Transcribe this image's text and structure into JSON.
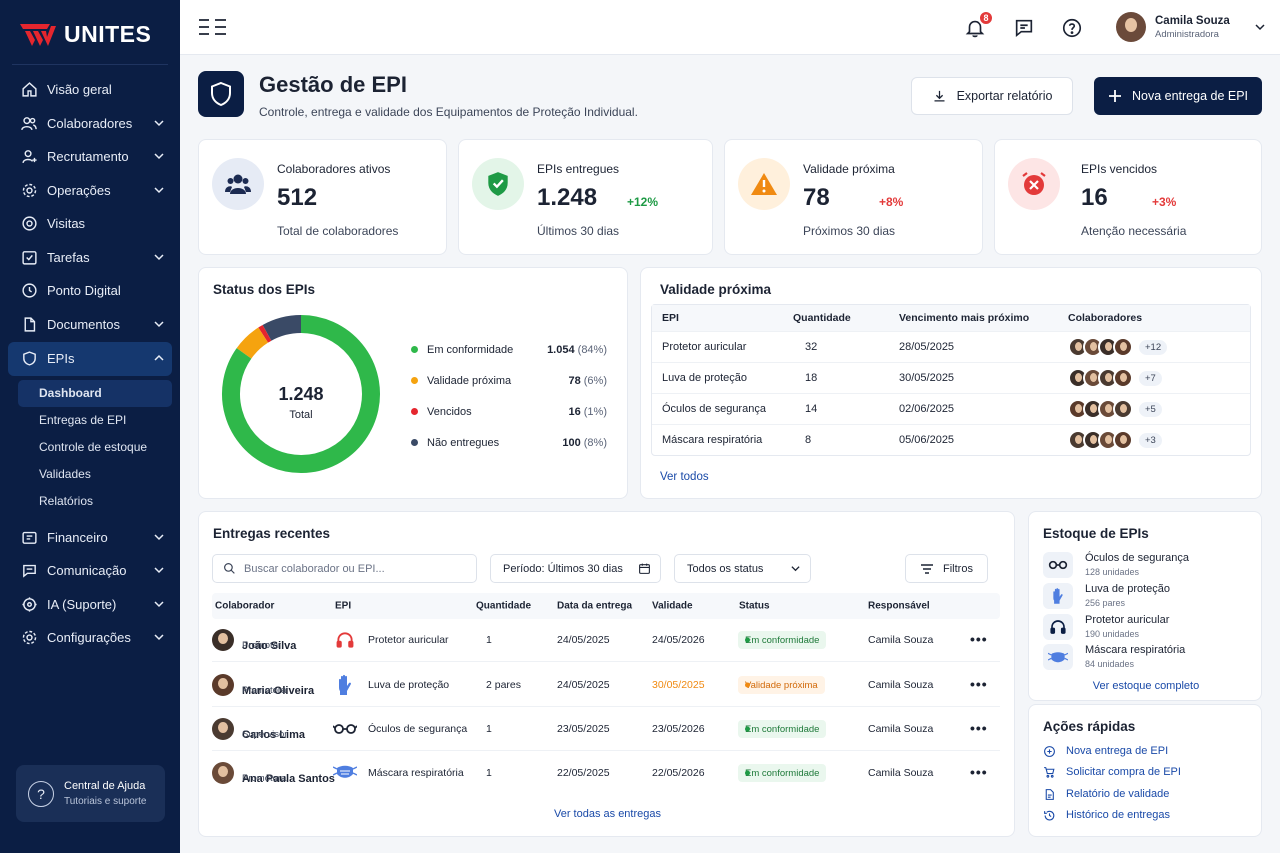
{
  "app": {
    "logo_text": "UNITES"
  },
  "sidebar": {
    "items": [
      {
        "label": "Visão geral",
        "icon": "home-icon",
        "has_children": false
      },
      {
        "label": "Colaboradores",
        "icon": "users-icon",
        "has_children": true
      },
      {
        "label": "Recrutamento",
        "icon": "user-plus-icon",
        "has_children": true
      },
      {
        "label": "Operações",
        "icon": "gear-icon",
        "has_children": true
      },
      {
        "label": "Visitas",
        "icon": "target-icon",
        "has_children": false
      },
      {
        "label": "Tarefas",
        "icon": "checkbox-icon",
        "has_children": true
      },
      {
        "label": "Ponto Digital",
        "icon": "clock-icon",
        "has_children": false
      },
      {
        "label": "Documentos",
        "icon": "document-icon",
        "has_children": true
      },
      {
        "label": "EPIs",
        "icon": "shield-icon",
        "has_children": true,
        "active": true
      }
    ],
    "epis_sub": [
      "Dashboard",
      "Entregas de EPI",
      "Controle de estoque",
      "Validades",
      "Relatórios"
    ],
    "items_after": [
      {
        "label": "Financeiro",
        "icon": "wallet-icon"
      },
      {
        "label": "Comunicação",
        "icon": "chat-icon"
      },
      {
        "label": "IA (Suporte)",
        "icon": "ai-icon"
      },
      {
        "label": "Configurações",
        "icon": "settings-icon"
      }
    ],
    "help": {
      "title": "Central de Ajuda",
      "subtitle": "Tutoriais e suporte"
    }
  },
  "topbar": {
    "notification_count": "8",
    "user": {
      "name": "Camila Souza",
      "role": "Administradora"
    }
  },
  "header": {
    "title": "Gestão de EPI",
    "subtitle": "Controle, entrega e validade dos Equipamentos de Proteção Individual.",
    "export_label": "Exportar relatório",
    "new_label": "Nova entrega de EPI"
  },
  "kpis": [
    {
      "label": "Colaboradores ativos",
      "value": "512",
      "delta": "",
      "foot": "Total de colaboradores",
      "color": "#1c2b52",
      "bg": "#e6ebf5"
    },
    {
      "label": "EPIs entregues",
      "value": "1.248",
      "delta": "+12%",
      "delta_color": "#1e9a45",
      "foot": "Últimos 30 dias",
      "color": "#1e9a45",
      "bg": "#e3f5e8"
    },
    {
      "label": "Validade próxima",
      "value": "78",
      "delta": "+8%",
      "delta_color": "#e33a3a",
      "foot": "Próximos 30 dias",
      "color": "#f08a12",
      "bg": "#fff0dc"
    },
    {
      "label": "EPIs vencidos",
      "value": "16",
      "delta": "+3%",
      "delta_color": "#e33a3a",
      "foot": "Atenção necessária",
      "color": "#e33a3a",
      "bg": "#fde5e5"
    }
  ],
  "status_card": {
    "title": "Status dos EPIs",
    "center_value": "1.248",
    "center_label": "Total",
    "legend": [
      {
        "label": "Em conformidade",
        "value": "1.054",
        "pct": "(84%)",
        "color": "#2fb84a"
      },
      {
        "label": "Validade próxima",
        "value": "78",
        "pct": "(6%)",
        "color": "#f5a30f"
      },
      {
        "label": "Vencidos",
        "value": "16",
        "pct": "(1%)",
        "color": "#e5262e"
      },
      {
        "label": "Não entregues",
        "value": "100",
        "pct": "(8%)",
        "color": "#3a4a66"
      }
    ]
  },
  "chart_data": {
    "type": "pie",
    "categories": [
      "Em conformidade",
      "Validade próxima",
      "Vencidos",
      "Não entregues"
    ],
    "values": [
      84,
      6,
      1,
      8
    ],
    "colors": [
      "#2fb84a",
      "#f5a30f",
      "#e5262e",
      "#3a4a66"
    ]
  },
  "validity": {
    "title": "Validade próxima",
    "columns": [
      "EPI",
      "Quantidade",
      "Vencimento mais próximo",
      "Colaboradores"
    ],
    "rows": [
      {
        "epi": "Protetor auricular",
        "qty": "32",
        "date": "28/05/2025",
        "more": "+12"
      },
      {
        "epi": "Luva de proteção",
        "qty": "18",
        "date": "30/05/2025",
        "more": "+7"
      },
      {
        "epi": "Óculos de segurança",
        "qty": "14",
        "date": "02/06/2025",
        "more": "+5"
      },
      {
        "epi": "Máscara respiratória",
        "qty": "8",
        "date": "05/06/2025",
        "more": "+3"
      }
    ],
    "see_all": "Ver todos"
  },
  "deliveries": {
    "title": "Entregas recentes",
    "search_placeholder": "Buscar colaborador ou EPI...",
    "period": "Período: Últimos 30 dias",
    "status_filter": "Todos os status",
    "filters": "Filtros",
    "columns": [
      "Colaborador",
      "EPI",
      "Quantidade",
      "Data da entrega",
      "Validade",
      "Status",
      "Responsável"
    ],
    "rows": [
      {
        "name": "João Silva",
        "role": "Promotor",
        "epi": "Protetor auricular",
        "epi_icon": "headphones-icon",
        "qty": "1",
        "date": "24/05/2025",
        "validity": "24/05/2026",
        "status": "Em conformidade",
        "status_type": "ok",
        "resp": "Camila Souza"
      },
      {
        "name": "Maria Oliveira",
        "role": "Promotora",
        "epi": "Luva de proteção",
        "epi_icon": "glove-icon",
        "qty": "2 pares",
        "date": "24/05/2025",
        "validity": "30/05/2025",
        "status": "Validade próxima",
        "status_type": "warn",
        "resp": "Camila Souza"
      },
      {
        "name": "Carlos Lima",
        "role": "Supervisor",
        "epi": "Óculos de segurança",
        "epi_icon": "glasses-icon",
        "qty": "1",
        "date": "23/05/2025",
        "validity": "23/05/2026",
        "status": "Em conformidade",
        "status_type": "ok",
        "resp": "Camila Souza"
      },
      {
        "name": "Ana Paula Santos",
        "role": "Promotora",
        "epi": "Máscara respiratória",
        "epi_icon": "mask-icon",
        "qty": "1",
        "date": "22/05/2025",
        "validity": "22/05/2026",
        "status": "Em conformidade",
        "status_type": "ok",
        "resp": "Camila Souza"
      }
    ],
    "see_all": "Ver todas as entregas"
  },
  "stock": {
    "title": "Estoque de EPIs",
    "items": [
      {
        "name": "Óculos de segurança",
        "qty": "128 unidades",
        "icon": "glasses-icon"
      },
      {
        "name": "Luva de proteção",
        "qty": "256 pares",
        "icon": "glove-icon"
      },
      {
        "name": "Protetor auricular",
        "qty": "190 unidades",
        "icon": "headphones-icon"
      },
      {
        "name": "Máscara respiratória",
        "qty": "84 unidades",
        "icon": "mask-icon"
      }
    ],
    "see_all": "Ver estoque completo"
  },
  "quick": {
    "title": "Ações rápidas",
    "items": [
      {
        "label": "Nova entrega de EPI",
        "icon": "plus-circle-icon"
      },
      {
        "label": "Solicitar compra de EPI",
        "icon": "cart-icon"
      },
      {
        "label": "Relatório de validade",
        "icon": "report-icon"
      },
      {
        "label": "Histórico de entregas",
        "icon": "history-icon"
      }
    ]
  }
}
